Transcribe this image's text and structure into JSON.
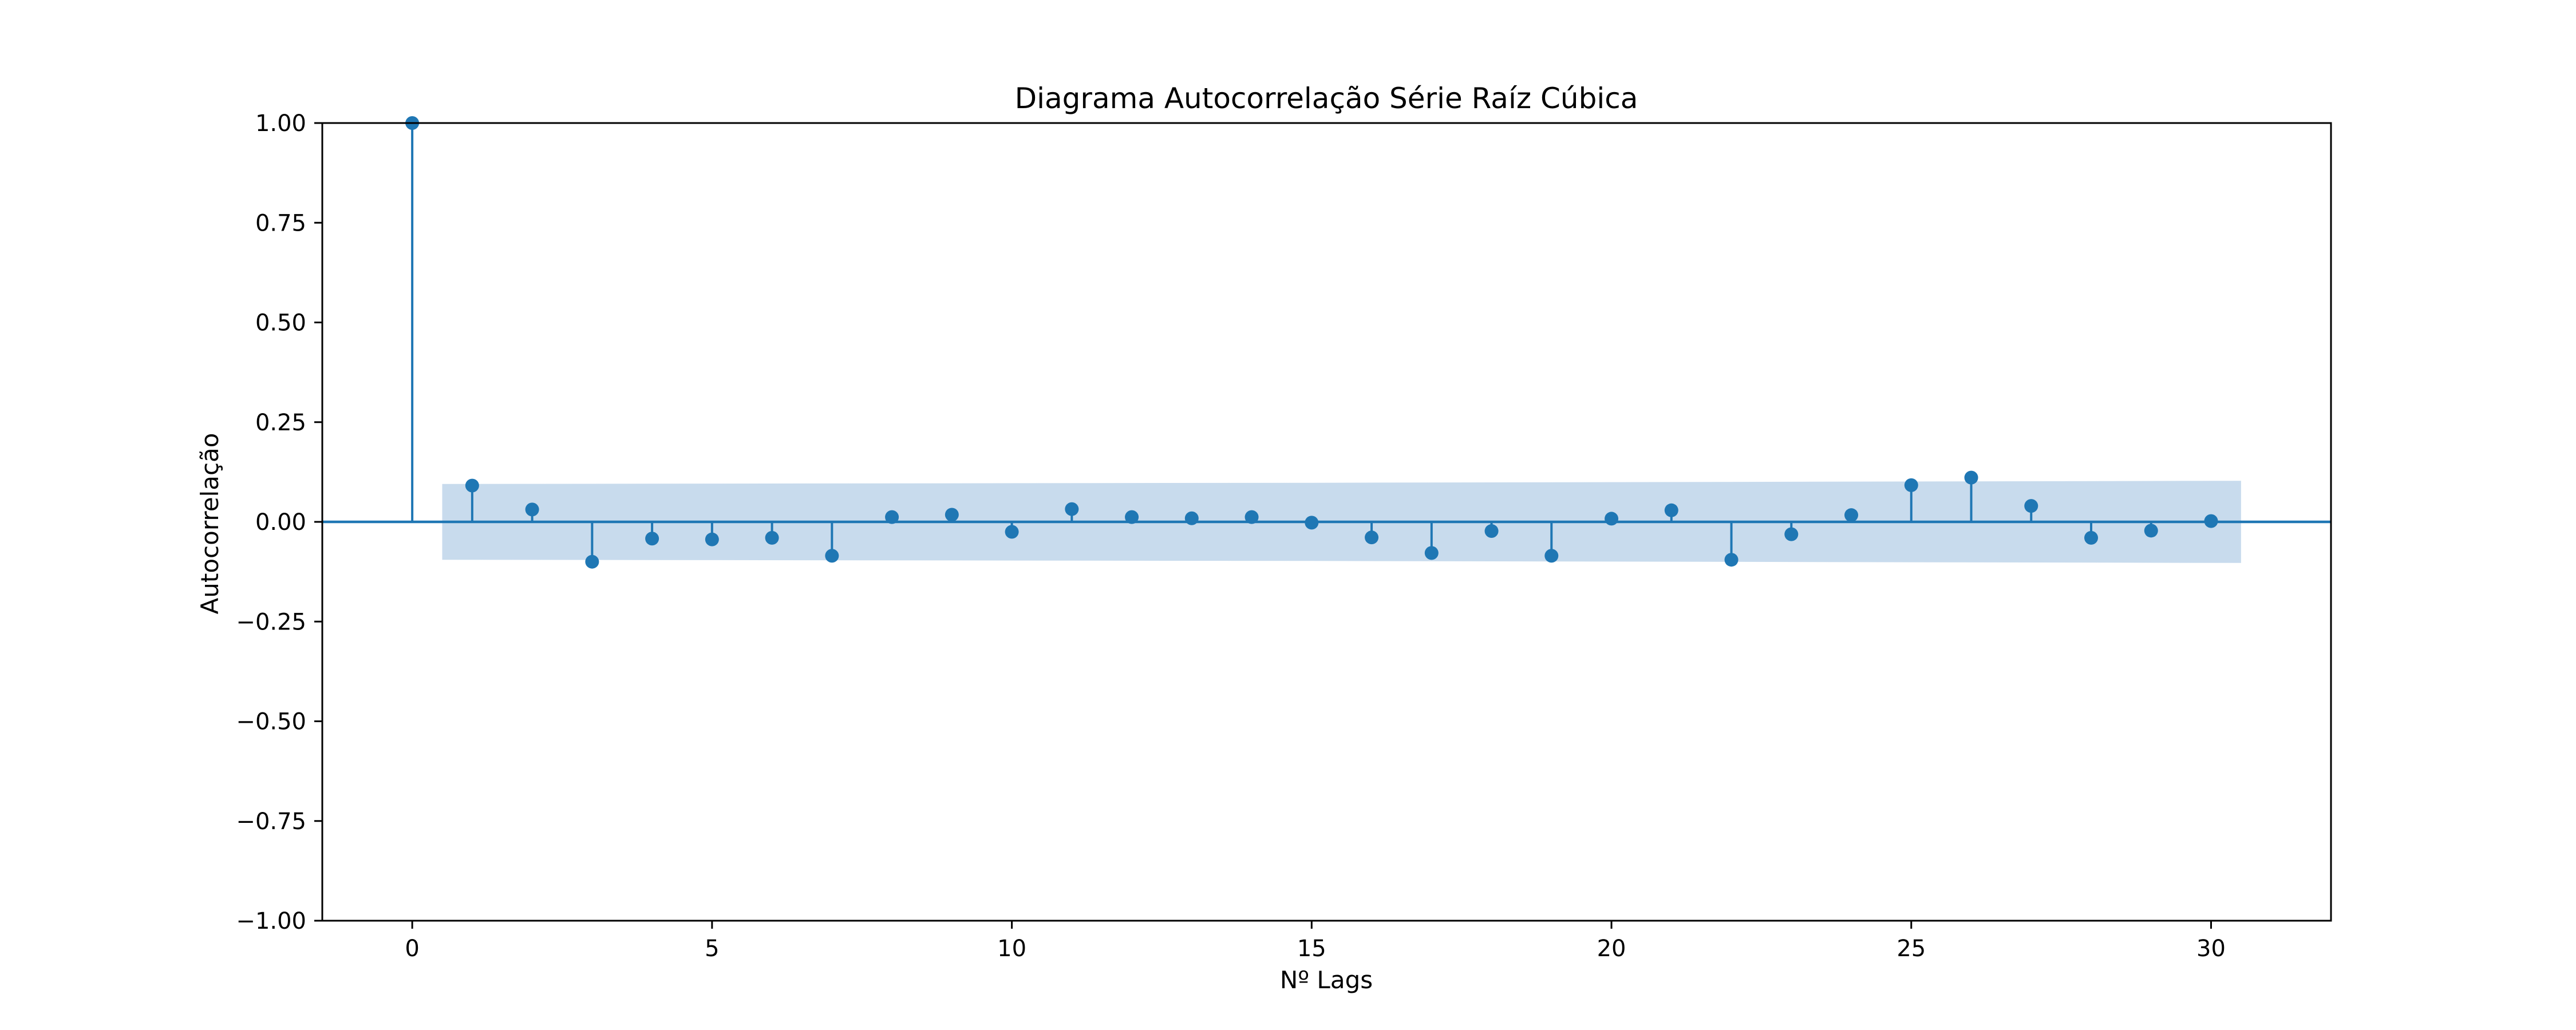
{
  "chart_data": {
    "type": "scatter",
    "style": "stem",
    "title": "Diagrama Autocorrelação Série Raíz Cúbica",
    "xlabel": "Nº Lags",
    "ylabel": "Autocorrelação",
    "xlim": [
      -1.5,
      32
    ],
    "ylim": [
      -1.0,
      1.0
    ],
    "xticks": [
      0,
      5,
      10,
      15,
      20,
      25,
      30
    ],
    "xtick_labels": [
      "0",
      "5",
      "10",
      "15",
      "20",
      "25",
      "30"
    ],
    "yticks": [
      1.0,
      0.75,
      0.5,
      0.25,
      0.0,
      -0.25,
      -0.5,
      -0.75,
      -1.0
    ],
    "ytick_labels": [
      "1.00",
      "0.75",
      "0.50",
      "0.25",
      "0.00",
      "−0.25",
      "−0.50",
      "−0.75",
      "−1.00"
    ],
    "grid": false,
    "legend": "none",
    "color": "#1f77b4",
    "confidence_band_color": "#aac8e3",
    "x": [
      0,
      1,
      2,
      3,
      4,
      5,
      6,
      7,
      8,
      9,
      10,
      11,
      12,
      13,
      14,
      15,
      16,
      17,
      18,
      19,
      20,
      21,
      22,
      23,
      24,
      25,
      26,
      27,
      28,
      29,
      30
    ],
    "values": [
      1.0,
      0.091,
      0.031,
      -0.1,
      -0.042,
      -0.044,
      -0.04,
      -0.085,
      0.012,
      0.018,
      -0.025,
      0.032,
      0.012,
      0.009,
      0.012,
      -0.002,
      -0.039,
      -0.078,
      -0.023,
      -0.085,
      0.008,
      0.029,
      -0.095,
      -0.031,
      0.017,
      0.092,
      0.111,
      0.04,
      -0.04,
      -0.022,
      0.002
    ],
    "confidence_interval": {
      "x": [
        0.5,
        15,
        30.5
      ],
      "upper": [
        0.095,
        0.098,
        0.103
      ],
      "lower": [
        -0.095,
        -0.098,
        -0.103
      ]
    }
  }
}
